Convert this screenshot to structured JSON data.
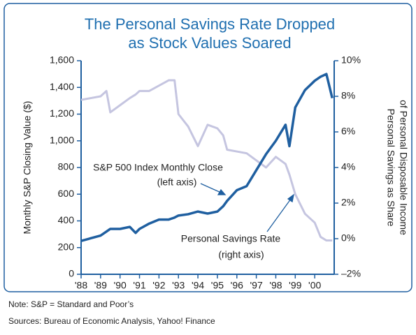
{
  "chart_data": {
    "type": "line",
    "title": [
      "The Personal Savings Rate Dropped",
      "as Stock Values Soared"
    ],
    "y_label": "Monthly S&P Closing Value ($)",
    "y2_label": [
      "Personal Savings as Share",
      "of Personal Disposable Income"
    ],
    "x": [
      1988.0,
      1988.5,
      1989.0,
      1989.3,
      1989.5,
      1990.0,
      1990.5,
      1990.8,
      1991.0,
      1991.5,
      1992.0,
      1992.5,
      1992.8,
      1993.0,
      1993.5,
      1994.0,
      1994.5,
      1995.0,
      1995.3,
      1995.5,
      1996.0,
      1996.5,
      1997.0,
      1997.5,
      1998.0,
      1998.5,
      1998.7,
      1999.0,
      1999.5,
      2000.0,
      2000.3,
      2000.6,
      2000.9
    ],
    "series": [
      {
        "name": "S&P 500 Index Monthly Close",
        "color": "#1f5fa0",
        "axis": "y",
        "values": [
          250,
          270,
          290,
          320,
          340,
          340,
          355,
          310,
          340,
          380,
          410,
          410,
          425,
          440,
          450,
          470,
          455,
          470,
          510,
          550,
          630,
          660,
          780,
          900,
          1000,
          1120,
          960,
          1250,
          1380,
          1450,
          1480,
          1500,
          1320
        ]
      },
      {
        "name": "Personal Savings Rate",
        "color": "#c5c5e0",
        "axis": "y2",
        "values": [
          7.8,
          7.9,
          8.0,
          8.3,
          7.1,
          7.5,
          7.9,
          8.1,
          8.3,
          8.3,
          8.6,
          8.9,
          8.9,
          7.0,
          6.3,
          5.2,
          6.4,
          6.2,
          5.8,
          5.0,
          4.9,
          4.8,
          4.4,
          4.0,
          4.6,
          4.2,
          3.6,
          2.5,
          1.4,
          0.9,
          0.1,
          -0.1,
          -0.1
        ]
      }
    ],
    "annotations": [
      "S&P 500 Index Monthly Close",
      "(left axis)",
      "Personal Savings Rate",
      "(right axis)"
    ],
    "xlim": [
      1988,
      2001
    ],
    "xticks": [
      {
        "value": 1988,
        "label": "'88"
      },
      {
        "value": 1989,
        "label": "'89"
      },
      {
        "value": 1990,
        "label": "'90"
      },
      {
        "value": 1991,
        "label": "'91"
      },
      {
        "value": 1992,
        "label": "'92"
      },
      {
        "value": 1993,
        "label": "'93"
      },
      {
        "value": 1994,
        "label": "'94"
      },
      {
        "value": 1995,
        "label": "'95"
      },
      {
        "value": 1996,
        "label": "'96"
      },
      {
        "value": 1997,
        "label": "'97"
      },
      {
        "value": 1998,
        "label": "'98"
      },
      {
        "value": 1999,
        "label": "'99"
      },
      {
        "value": 2000,
        "label": "'00"
      }
    ],
    "ylim": [
      0,
      1600
    ],
    "yticks": [
      0,
      200,
      400,
      600,
      800,
      {
        "value": 1000,
        "label": "1,000"
      },
      {
        "value": 1200,
        "label": "1,200"
      },
      {
        "value": 1400,
        "label": "1,400"
      },
      {
        "value": 1600,
        "label": "1,600"
      }
    ],
    "y2lim": [
      -2,
      10
    ],
    "y2ticks": [
      {
        "value": -2,
        "label": "–2%"
      },
      {
        "value": 0,
        "label": "0%"
      },
      {
        "value": 2,
        "label": "2%"
      },
      {
        "value": 4,
        "label": "4%"
      },
      {
        "value": 6,
        "label": "6%"
      },
      {
        "value": 8,
        "label": "8%"
      },
      {
        "value": 10,
        "label": "10%"
      }
    ],
    "notes": [
      "Note: S&P = Standard and Poor’s",
      "Sources: Bureau of Economic Analysis, Yahoo! Finance"
    ]
  }
}
